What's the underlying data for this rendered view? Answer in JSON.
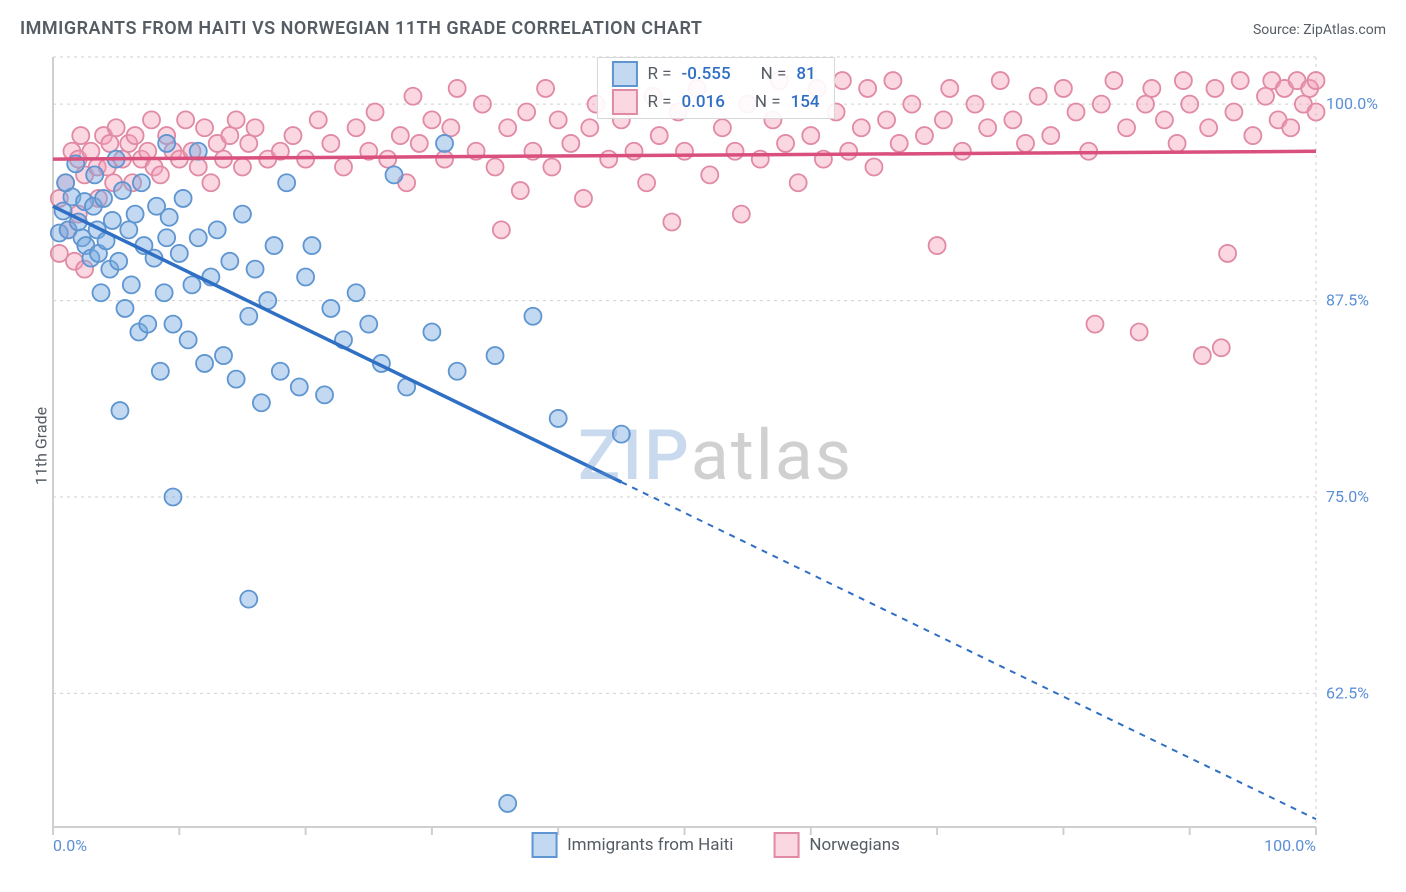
{
  "title": "IMMIGRANTS FROM HAITI VS NORWEGIAN 11TH GRADE CORRELATION CHART",
  "source_label": "Source: ZipAtlas.com",
  "watermark_zip": "ZIP",
  "watermark_atlas": "atlas",
  "ylabel": "11th Grade",
  "chart": {
    "type": "scatter",
    "xlim": [
      0,
      100
    ],
    "ylim": [
      54,
      103
    ],
    "x_tick_start_label": "0.0%",
    "x_tick_end_label": "100.0%",
    "x_tick_positions": [
      0,
      10,
      20,
      30,
      40,
      50,
      60,
      70,
      80,
      90,
      100
    ],
    "y_gridlines": [
      62.5,
      75.0,
      87.5,
      100.0
    ],
    "y_tick_labels": [
      "62.5%",
      "75.0%",
      "87.5%",
      "100.0%"
    ],
    "background_color": "#ffffff",
    "grid_color": "#cfcfcf",
    "marker_radius": 8.5,
    "marker_stroke_width": 1.8,
    "trend_line_width": 3.5,
    "trend_dash": "6 6",
    "series": [
      {
        "name": "Immigrants from Haiti",
        "fill": "rgba(120,170,225,0.45)",
        "stroke": "#5f95d0",
        "line_color": "#2f6fc4",
        "R_label": "R =",
        "R": "-0.555",
        "N_label": "N =",
        "N": "81",
        "trend": {
          "x1": 0,
          "y1": 93.5,
          "x2": 100,
          "y2": 54.5,
          "solid_until_x": 45
        },
        "points": [
          [
            0.5,
            91.8
          ],
          [
            0.8,
            93.2
          ],
          [
            1.2,
            92.0
          ],
          [
            1.5,
            94.1
          ],
          [
            1.8,
            96.2
          ],
          [
            1.0,
            95.0
          ],
          [
            2.0,
            92.5
          ],
          [
            2.3,
            91.5
          ],
          [
            2.5,
            93.8
          ],
          [
            2.6,
            91.0
          ],
          [
            3.0,
            90.2
          ],
          [
            3.2,
            93.5
          ],
          [
            3.3,
            95.5
          ],
          [
            3.5,
            92.0
          ],
          [
            3.6,
            90.5
          ],
          [
            3.8,
            88.0
          ],
          [
            4.0,
            94.0
          ],
          [
            4.2,
            91.3
          ],
          [
            4.5,
            89.5
          ],
          [
            4.7,
            92.6
          ],
          [
            5.0,
            96.5
          ],
          [
            5.2,
            90.0
          ],
          [
            5.5,
            94.5
          ],
          [
            5.7,
            87.0
          ],
          [
            5.3,
            80.5
          ],
          [
            6.0,
            92.0
          ],
          [
            6.2,
            88.5
          ],
          [
            6.5,
            93.0
          ],
          [
            6.8,
            85.5
          ],
          [
            7.0,
            95.0
          ],
          [
            7.2,
            91.0
          ],
          [
            7.5,
            86.0
          ],
          [
            8.0,
            90.2
          ],
          [
            8.2,
            93.5
          ],
          [
            8.5,
            83.0
          ],
          [
            8.8,
            88.0
          ],
          [
            9.0,
            91.5
          ],
          [
            9.2,
            92.8
          ],
          [
            9.5,
            86.0
          ],
          [
            9.5,
            75.0
          ],
          [
            10.0,
            90.5
          ],
          [
            10.3,
            94.0
          ],
          [
            10.7,
            85.0
          ],
          [
            11.0,
            88.5
          ],
          [
            11.5,
            91.5
          ],
          [
            11.5,
            97.0
          ],
          [
            12.0,
            83.5
          ],
          [
            12.5,
            89.0
          ],
          [
            13.0,
            92.0
          ],
          [
            13.5,
            84.0
          ],
          [
            14.0,
            90.0
          ],
          [
            14.5,
            82.5
          ],
          [
            15.0,
            93.0
          ],
          [
            15.5,
            86.5
          ],
          [
            15.5,
            68.5
          ],
          [
            16.0,
            89.5
          ],
          [
            16.5,
            81.0
          ],
          [
            17.0,
            87.5
          ],
          [
            17.5,
            91.0
          ],
          [
            18.0,
            83.0
          ],
          [
            18.5,
            95.0
          ],
          [
            19.5,
            82.0
          ],
          [
            20.0,
            89.0
          ],
          [
            20.5,
            91.0
          ],
          [
            21.5,
            81.5
          ],
          [
            22.0,
            87.0
          ],
          [
            23.0,
            85.0
          ],
          [
            24.0,
            88.0
          ],
          [
            25.0,
            86.0
          ],
          [
            26.0,
            83.5
          ],
          [
            27.0,
            95.5
          ],
          [
            28.0,
            82.0
          ],
          [
            30.0,
            85.5
          ],
          [
            32.0,
            83.0
          ],
          [
            31.0,
            97.5
          ],
          [
            35.0,
            84.0
          ],
          [
            38.0,
            86.5
          ],
          [
            40.0,
            80.0
          ],
          [
            36.0,
            55.5
          ],
          [
            45.0,
            79.0
          ],
          [
            9.0,
            97.5
          ]
        ]
      },
      {
        "name": "Norwegians",
        "fill": "rgba(245,160,185,0.42)",
        "stroke": "#e08aa4",
        "line_color": "#d94f7d",
        "R_label": "R =",
        "R": "0.016",
        "N_label": "N =",
        "N": "154",
        "trend": {
          "x1": 0,
          "y1": 96.5,
          "x2": 100,
          "y2": 97.0,
          "solid_until_x": 100
        },
        "points": [
          [
            0.5,
            94.0
          ],
          [
            0.5,
            90.5
          ],
          [
            1.0,
            95.0
          ],
          [
            1.2,
            92.0
          ],
          [
            1.5,
            97.0
          ],
          [
            1.7,
            90.0
          ],
          [
            2.0,
            96.5
          ],
          [
            2.2,
            98.0
          ],
          [
            2.0,
            93.0
          ],
          [
            2.5,
            95.5
          ],
          [
            2.5,
            89.5
          ],
          [
            3.0,
            97.0
          ],
          [
            3.5,
            96.0
          ],
          [
            3.6,
            94.0
          ],
          [
            4.0,
            98.0
          ],
          [
            4.3,
            96.0
          ],
          [
            4.5,
            97.5
          ],
          [
            4.8,
            95.0
          ],
          [
            5.0,
            98.5
          ],
          [
            5.5,
            96.5
          ],
          [
            6.0,
            97.5
          ],
          [
            6.3,
            95.0
          ],
          [
            6.5,
            98.0
          ],
          [
            7.0,
            96.5
          ],
          [
            7.5,
            97.0
          ],
          [
            7.8,
            99.0
          ],
          [
            8.0,
            96.0
          ],
          [
            8.5,
            95.5
          ],
          [
            9.0,
            98.0
          ],
          [
            9.5,
            97.0
          ],
          [
            10.0,
            96.5
          ],
          [
            10.5,
            99.0
          ],
          [
            11.0,
            97.0
          ],
          [
            11.5,
            96.0
          ],
          [
            12.0,
            98.5
          ],
          [
            12.5,
            95.0
          ],
          [
            13.0,
            97.5
          ],
          [
            13.5,
            96.5
          ],
          [
            14.0,
            98.0
          ],
          [
            14.5,
            99.0
          ],
          [
            15.0,
            96.0
          ],
          [
            15.5,
            97.5
          ],
          [
            16.0,
            98.5
          ],
          [
            17.0,
            96.5
          ],
          [
            18.0,
            97.0
          ],
          [
            19.0,
            98.0
          ],
          [
            20.0,
            96.5
          ],
          [
            21.0,
            99.0
          ],
          [
            22.0,
            97.5
          ],
          [
            23.0,
            96.0
          ],
          [
            24.0,
            98.5
          ],
          [
            25.0,
            97.0
          ],
          [
            25.5,
            99.5
          ],
          [
            26.5,
            96.5
          ],
          [
            27.5,
            98.0
          ],
          [
            28.0,
            95.0
          ],
          [
            28.5,
            100.5
          ],
          [
            29.0,
            97.5
          ],
          [
            30.0,
            99.0
          ],
          [
            31.0,
            96.5
          ],
          [
            31.5,
            98.5
          ],
          [
            32.0,
            101.0
          ],
          [
            33.5,
            97.0
          ],
          [
            34.0,
            100.0
          ],
          [
            35.0,
            96.0
          ],
          [
            35.5,
            92.0
          ],
          [
            36.0,
            98.5
          ],
          [
            37.0,
            94.5
          ],
          [
            37.5,
            99.5
          ],
          [
            38.0,
            97.0
          ],
          [
            39.0,
            101.0
          ],
          [
            39.5,
            96.0
          ],
          [
            40.0,
            99.0
          ],
          [
            41.0,
            97.5
          ],
          [
            42.0,
            94.0
          ],
          [
            42.5,
            98.5
          ],
          [
            43.0,
            100.0
          ],
          [
            44.0,
            96.5
          ],
          [
            45.0,
            99.0
          ],
          [
            46.0,
            97.0
          ],
          [
            47.0,
            95.0
          ],
          [
            47.5,
            100.5
          ],
          [
            48.0,
            98.0
          ],
          [
            49.0,
            92.5
          ],
          [
            49.5,
            99.5
          ],
          [
            50.0,
            97.0
          ],
          [
            51.0,
            101.0
          ],
          [
            52.0,
            95.5
          ],
          [
            53.0,
            98.5
          ],
          [
            54.0,
            97.0
          ],
          [
            54.5,
            93.0
          ],
          [
            55.0,
            100.0
          ],
          [
            56.0,
            96.5
          ],
          [
            57.0,
            99.0
          ],
          [
            57.5,
            101.5
          ],
          [
            58.0,
            97.5
          ],
          [
            59.0,
            95.0
          ],
          [
            60.0,
            98.0
          ],
          [
            60.5,
            101.0
          ],
          [
            61.0,
            96.5
          ],
          [
            62.0,
            99.5
          ],
          [
            62.5,
            101.5
          ],
          [
            63.0,
            97.0
          ],
          [
            64.0,
            98.5
          ],
          [
            64.5,
            101.0
          ],
          [
            65.0,
            96.0
          ],
          [
            66.0,
            99.0
          ],
          [
            66.5,
            101.5
          ],
          [
            67.0,
            97.5
          ],
          [
            68.0,
            100.0
          ],
          [
            69.0,
            98.0
          ],
          [
            70.0,
            91.0
          ],
          [
            70.5,
            99.0
          ],
          [
            71.0,
            101.0
          ],
          [
            72.0,
            97.0
          ],
          [
            73.0,
            100.0
          ],
          [
            74.0,
            98.5
          ],
          [
            75.0,
            101.5
          ],
          [
            76.0,
            99.0
          ],
          [
            77.0,
            97.5
          ],
          [
            78.0,
            100.5
          ],
          [
            79.0,
            98.0
          ],
          [
            80.0,
            101.0
          ],
          [
            81.0,
            99.5
          ],
          [
            82.0,
            97.0
          ],
          [
            82.5,
            86.0
          ],
          [
            83.0,
            100.0
          ],
          [
            84.0,
            101.5
          ],
          [
            85.0,
            98.5
          ],
          [
            86.0,
            85.5
          ],
          [
            86.5,
            100.0
          ],
          [
            87.0,
            101.0
          ],
          [
            88.0,
            99.0
          ],
          [
            89.0,
            97.5
          ],
          [
            89.5,
            101.5
          ],
          [
            90.0,
            100.0
          ],
          [
            91.0,
            84.0
          ],
          [
            91.5,
            98.5
          ],
          [
            92.0,
            101.0
          ],
          [
            93.0,
            90.5
          ],
          [
            93.5,
            99.5
          ],
          [
            94.0,
            101.5
          ],
          [
            95.0,
            98.0
          ],
          [
            96.0,
            100.5
          ],
          [
            96.5,
            101.5
          ],
          [
            97.0,
            99.0
          ],
          [
            97.5,
            101.0
          ],
          [
            98.0,
            98.5
          ],
          [
            98.5,
            101.5
          ],
          [
            99.0,
            100.0
          ],
          [
            99.5,
            101.0
          ],
          [
            100.0,
            99.5
          ],
          [
            100.0,
            101.5
          ],
          [
            92.5,
            84.5
          ]
        ]
      }
    ]
  }
}
